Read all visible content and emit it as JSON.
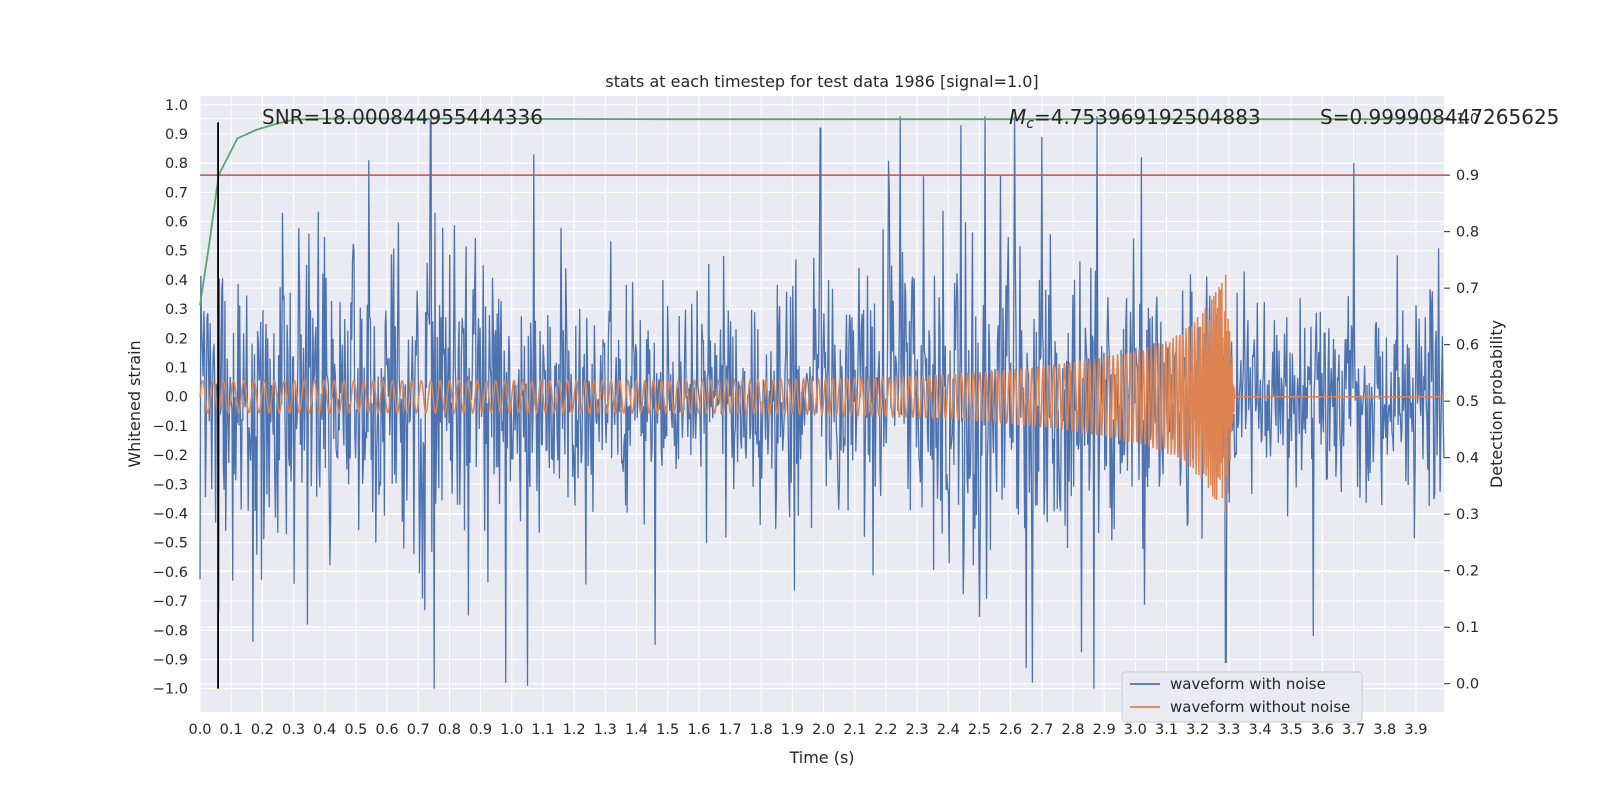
{
  "chart_data": {
    "type": "line",
    "title": "stats at each timestep for test data 1986 [signal=1.0]",
    "xlabel": "Time (s)",
    "ylabel_left": "Whitened strain",
    "ylabel_right": "Detection probability",
    "xlim": [
      0.0,
      3.99
    ],
    "ylim_left": [
      -1.08,
      1.03
    ],
    "ylim_right": [
      -0.05,
      1.04
    ],
    "x_ticks": [
      "0.0",
      "0.1",
      "0.2",
      "0.3",
      "0.4",
      "0.5",
      "0.6",
      "0.7",
      "0.8",
      "0.9",
      "1.0",
      "1.1",
      "1.2",
      "1.3",
      "1.4",
      "1.5",
      "1.6",
      "1.7",
      "1.8",
      "1.9",
      "2.0",
      "2.1",
      "2.2",
      "2.3",
      "2.4",
      "2.5",
      "2.6",
      "2.7",
      "2.8",
      "2.9",
      "3.0",
      "3.1",
      "3.2",
      "3.3",
      "3.4",
      "3.5",
      "3.6",
      "3.7",
      "3.8",
      "3.9"
    ],
    "y_ticks_left": [
      "1.0",
      "0.9",
      "0.8",
      "0.7",
      "0.6",
      "0.5",
      "0.4",
      "0.3",
      "0.2",
      "0.1",
      "0.0",
      "−0.1",
      "−0.2",
      "−0.3",
      "−0.4",
      "−0.5",
      "−0.6",
      "−0.7",
      "−0.8",
      "−0.9",
      "−1.0"
    ],
    "y_ticks_right": [
      "1.0",
      "0.9",
      "0.8",
      "0.7",
      "0.6",
      "0.5",
      "0.4",
      "0.3",
      "0.2",
      "0.1",
      "0.0"
    ],
    "annotations": {
      "snr": "SNR=18.000844955444336",
      "mc": "=4.753969192504883",
      "mc_symbol": "M",
      "mc_sub": "c",
      "s": "S=0.999908447265625"
    },
    "series": [
      {
        "name": "waveform with noise",
        "axis": "left",
        "color": "#4c72b0",
        "style": "noise",
        "duration": 4.0,
        "envelope": {
          "typical": 0.3,
          "spikes": [
            {
              "x": 0.74,
              "y": 0.95
            },
            {
              "x": 0.98,
              "y": -0.98
            },
            {
              "x": 1.05,
              "y": -0.99
            },
            {
              "x": 1.07,
              "y": 0.83
            },
            {
              "x": 1.99,
              "y": 0.92
            },
            {
              "x": 2.44,
              "y": 0.93
            },
            {
              "x": 2.65,
              "y": -0.93
            },
            {
              "x": 2.67,
              "y": -0.98
            },
            {
              "x": 2.7,
              "y": 0.89
            },
            {
              "x": 3.02,
              "y": 0.82
            },
            {
              "x": 3.29,
              "y": -0.91
            },
            {
              "x": 3.7,
              "y": 0.8
            },
            {
              "x": 0.17,
              "y": -0.84
            },
            {
              "x": 1.46,
              "y": -0.85
            },
            {
              "x": 3.57,
              "y": -0.82
            }
          ]
        }
      },
      {
        "name": "waveform without noise",
        "axis": "left",
        "color": "#dd8452",
        "style": "chirp",
        "amplitude_start": 0.055,
        "amplitude_peak": 0.42,
        "merger_time": 3.29,
        "ringdown_end": 3.32,
        "freq_start_hz": 30,
        "tail_value": 0.0
      },
      {
        "name": "Detection probability",
        "axis": "right",
        "color": "#55a868",
        "points": [
          [
            0.0,
            0.67
          ],
          [
            0.03,
            0.78
          ],
          [
            0.06,
            0.9
          ],
          [
            0.12,
            0.965
          ],
          [
            0.18,
            0.98
          ],
          [
            0.24,
            0.99
          ],
          [
            0.3,
            0.998
          ],
          [
            0.4,
            1.0
          ],
          [
            1.5,
            0.999
          ],
          [
            4.0,
            0.999
          ]
        ]
      }
    ],
    "hline_right": {
      "value": 0.9,
      "color": "#c44e52"
    },
    "vline": {
      "x": 0.058,
      "color": "#000000",
      "y_range_left": [
        -1.0,
        0.94
      ]
    },
    "legend": {
      "placement": "lower-right"
    }
  }
}
